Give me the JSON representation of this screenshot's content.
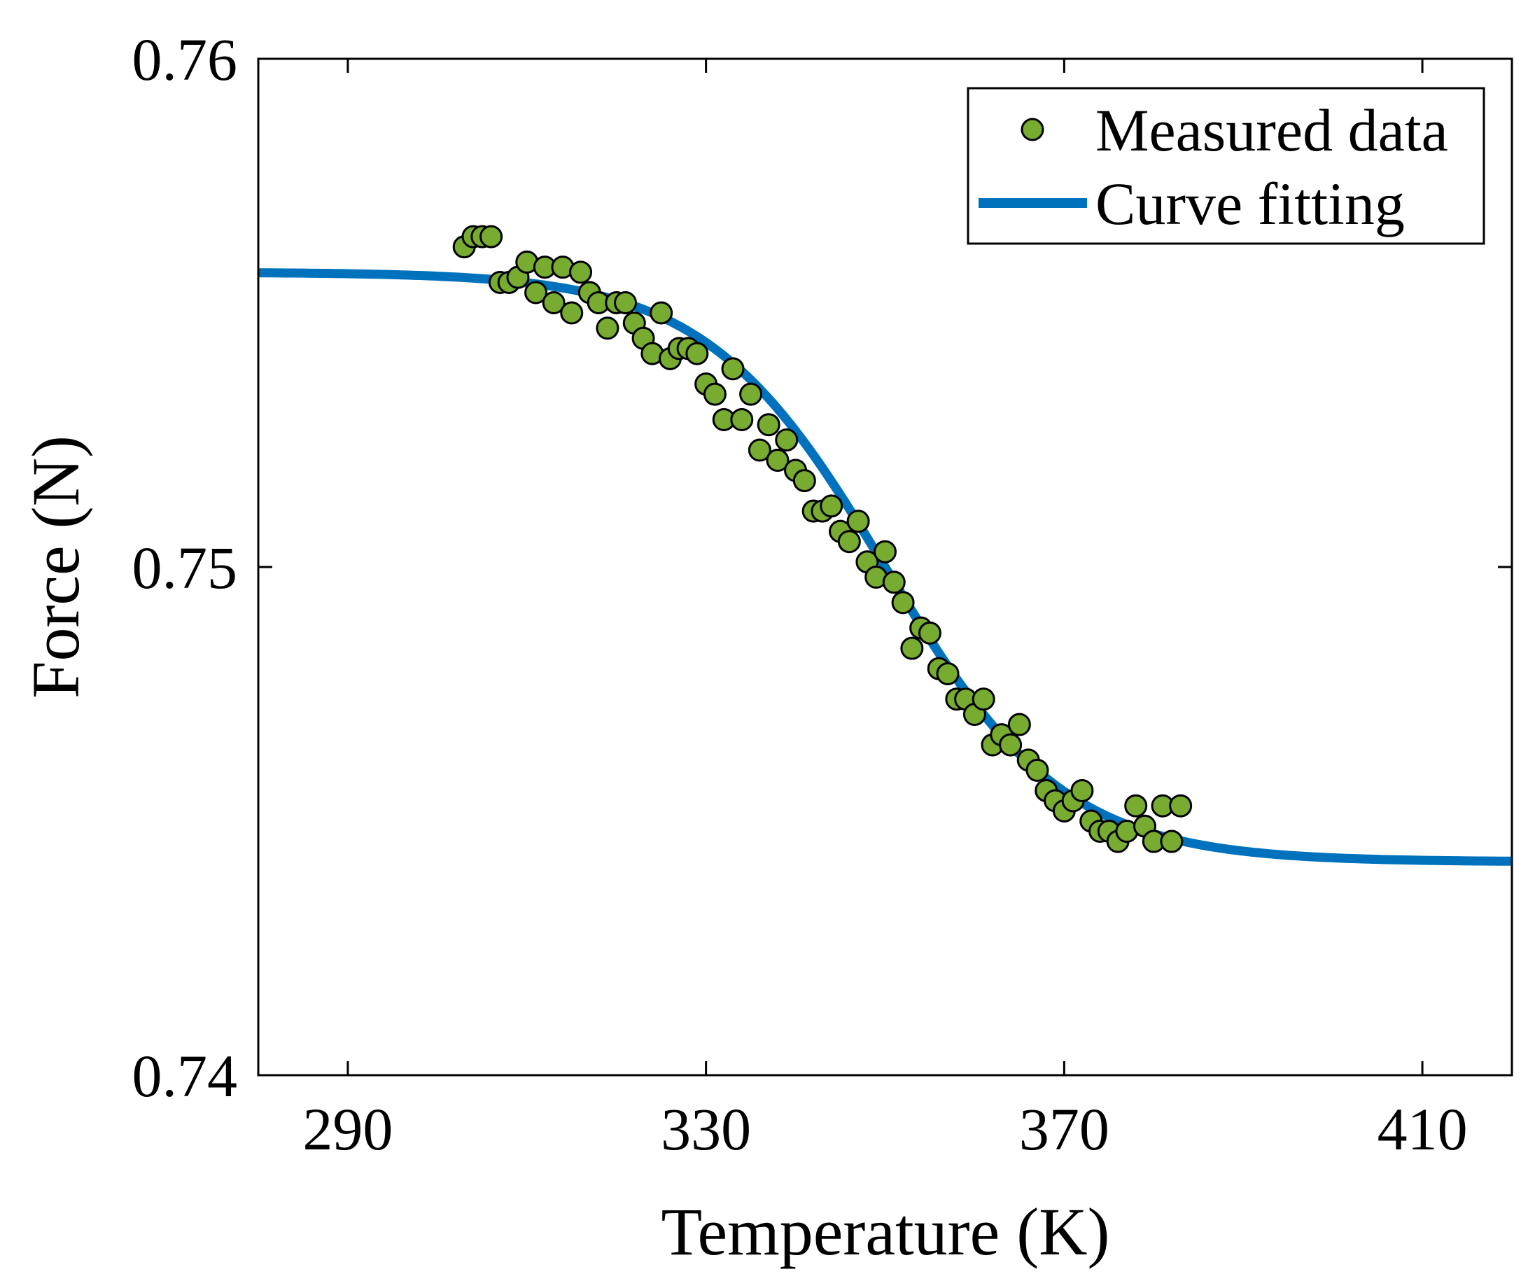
{
  "chart_data": {
    "type": "scatter",
    "title": "",
    "xlabel": "Temperature (K)",
    "ylabel": "Force (N)",
    "xlim": [
      280,
      420
    ],
    "ylim": [
      0.74,
      0.76
    ],
    "xticks": [
      290,
      330,
      370,
      410
    ],
    "xtick_labels": [
      "290",
      "330",
      "370",
      "410"
    ],
    "yticks": [
      0.74,
      0.75,
      0.76
    ],
    "ytick_labels": [
      "0.74",
      "0.75",
      "0.76"
    ],
    "grid": false,
    "legend_position": "top-right",
    "colors": {
      "marker_fill": "#77ac30",
      "marker_edge": "#000000",
      "curve": "#0072bd",
      "axes": "#000000",
      "background": "#ffffff"
    },
    "series": [
      {
        "name": "Measured data",
        "kind": "scatter",
        "x": [
          303,
          304,
          305,
          306,
          307,
          308,
          309,
          310,
          311,
          312,
          313,
          314,
          315,
          316,
          317,
          318,
          319,
          320,
          321,
          322,
          323,
          324,
          325,
          326,
          327,
          328,
          329,
          330,
          331,
          332,
          333,
          334,
          335,
          336,
          337,
          338,
          339,
          340,
          341,
          342,
          343,
          344,
          345,
          346,
          347,
          348,
          349,
          350,
          351,
          352,
          353,
          354,
          355,
          356,
          357,
          358,
          359,
          360,
          361,
          362,
          363,
          364,
          365,
          366,
          367,
          368,
          369,
          370,
          371,
          372,
          373,
          374,
          375,
          376,
          377,
          378,
          379,
          380,
          381,
          382,
          383
        ],
        "y": [
          0.7563,
          0.7565,
          0.7565,
          0.7565,
          0.7556,
          0.7556,
          0.7557,
          0.756,
          0.7554,
          0.7559,
          0.7552,
          0.7559,
          0.755,
          0.7558,
          0.7554,
          0.7552,
          0.7547,
          0.7552,
          0.7552,
          0.7548,
          0.7545,
          0.7542,
          0.755,
          0.7541,
          0.7543,
          0.7543,
          0.7542,
          0.7536,
          0.7534,
          0.7529,
          0.7539,
          0.7529,
          0.7534,
          0.7523,
          0.7528,
          0.7521,
          0.7525,
          0.7519,
          0.7517,
          0.7511,
          0.7511,
          0.7512,
          0.7507,
          0.7505,
          0.7509,
          0.7501,
          0.7498,
          0.7503,
          0.7497,
          0.7493,
          0.7484,
          0.7488,
          0.7487,
          0.748,
          0.7479,
          0.7474,
          0.7474,
          0.7471,
          0.7474,
          0.7465,
          0.7467,
          0.7465,
          0.7469,
          0.7462,
          0.746,
          0.7456,
          0.7454,
          0.7452,
          0.7454,
          0.7456,
          0.745,
          0.7448,
          0.7448,
          0.7446,
          0.7448,
          0.7453,
          0.7449,
          0.7446,
          0.7453,
          0.7446,
          0.7453
        ]
      },
      {
        "name": "Curve fitting",
        "kind": "line",
        "model": "logistic",
        "upper": 0.7558,
        "lower": 0.7442,
        "midpoint_x": 350,
        "scale": 10,
        "x_range": [
          280,
          420
        ]
      }
    ]
  }
}
